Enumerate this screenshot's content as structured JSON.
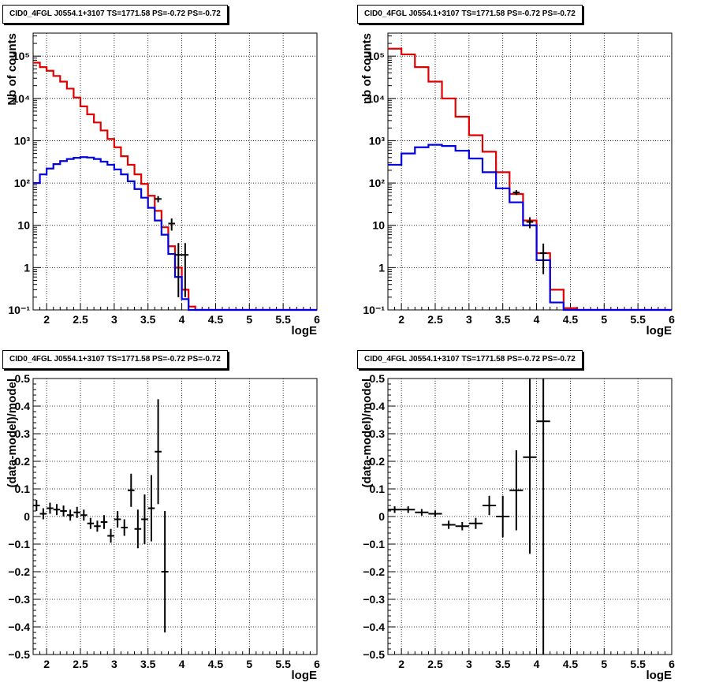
{
  "panel_title": "CID0_4FGL J0554.1+3107 TS=1771.58 PS=-0.72 PS=-0.72",
  "colors": {
    "data": "#000000",
    "model_total": "#e00000",
    "model_source": "#0000e0",
    "grid": "#000000"
  },
  "chart_data": [
    {
      "type": "line",
      "title": "CID0_4FGL J0554.1+3107 TS=1771.58 PS=-0.72 PS=-0.72",
      "xlabel": "logE",
      "ylabel": "Nb of counts",
      "yscale": "log",
      "xlim": [
        1.8,
        6.0
      ],
      "ylim": [
        0.1,
        350000
      ],
      "xticks": [
        "2",
        "2.5",
        "3",
        "3.5",
        "4",
        "4.5",
        "5",
        "5.5",
        "6"
      ],
      "yticks": [
        "10⁻¹",
        "1",
        "10",
        "10²",
        "10³",
        "10⁴",
        "10⁵"
      ],
      "grid": true,
      "bin_width": 0.1,
      "bin_edges_start": 1.8,
      "series": [
        {
          "style": "step",
          "color": "#e00000",
          "values": [
            70000,
            55000,
            45000,
            34000,
            25000,
            17000,
            10500,
            6500,
            4200,
            2700,
            1750,
            1100,
            700,
            430,
            270,
            160,
            95,
            50,
            22,
            9,
            3.2,
            1.0,
            0.3,
            0.12,
            0.1,
            0.1,
            0.1,
            0.1,
            0.1,
            0.1,
            0.1,
            0.1,
            0.1,
            0.1,
            0.1,
            0.1,
            0.1,
            0.1,
            0.1,
            0.1,
            0.1,
            0.1
          ]
        },
        {
          "style": "step",
          "color": "#0000e0",
          "values": [
            100,
            160,
            220,
            280,
            330,
            370,
            395,
            410,
            400,
            370,
            320,
            270,
            210,
            160,
            110,
            72,
            45,
            26,
            13,
            6,
            2.1,
            0.6,
            0.18,
            0.1,
            0.1,
            0.1,
            0.1,
            0.1,
            0.1,
            0.1,
            0.1,
            0.1,
            0.1,
            0.1,
            0.1,
            0.1,
            0.1,
            0.1,
            0.1,
            0.1,
            0.1,
            0.1
          ]
        },
        {
          "style": "errorbar",
          "color": "#000000",
          "points": [
            {
              "x": 3.65,
              "y": 42,
              "yerr": 7
            },
            {
              "x": 3.85,
              "y": 11,
              "yerr": 3.5
            },
            {
              "x": 3.95,
              "y": 2,
              "yerr": 1.8
            },
            {
              "x": 4.05,
              "y": 2,
              "yerr": 1.8
            }
          ]
        }
      ]
    },
    {
      "type": "line",
      "title": "CID0_4FGL J0554.1+3107 TS=1771.58 PS=-0.72 PS=-0.72",
      "xlabel": "logE",
      "ylabel": "nb of counts",
      "yscale": "log",
      "xlim": [
        1.8,
        6.0
      ],
      "ylim": [
        0.1,
        350000
      ],
      "xticks": [
        "2",
        "2.5",
        "3",
        "3.5",
        "4",
        "4.5",
        "5",
        "5.5",
        "6"
      ],
      "yticks": [
        "10⁻¹",
        "1",
        "10",
        "10²",
        "10³",
        "10⁴",
        "10⁵"
      ],
      "grid": true,
      "bin_width": 0.2,
      "bin_edges_start": 1.8,
      "series": [
        {
          "style": "step",
          "color": "#e00000",
          "values": [
            150000,
            110000,
            55000,
            25000,
            10000,
            3700,
            1350,
            550,
            180,
            55,
            13,
            2.2,
            0.3,
            0.11,
            0.1,
            0.1,
            0.1,
            0.1,
            0.1,
            0.1,
            0.1
          ]
        },
        {
          "style": "step",
          "color": "#0000e0",
          "values": [
            270,
            500,
            700,
            800,
            750,
            580,
            380,
            180,
            75,
            35,
            10,
            1.5,
            0.15,
            0.1,
            0.1,
            0.1,
            0.1,
            0.1,
            0.1,
            0.1,
            0.1
          ]
        },
        {
          "style": "errorbar",
          "color": "#000000",
          "points": [
            {
              "x": 3.7,
              "y": 60,
              "yerr": 8
            },
            {
              "x": 3.9,
              "y": 12,
              "yerr": 3.5
            },
            {
              "x": 4.1,
              "y": 2.2,
              "yerr": 1.5
            }
          ]
        }
      ]
    },
    {
      "type": "scatter",
      "title": "CID0_4FGL J0554.1+3107 TS=1771.58 PS=-0.72 PS=-0.72",
      "xlabel": "logE",
      "ylabel": "(data-model)/model",
      "xlim": [
        1.8,
        6.0
      ],
      "ylim": [
        -0.5,
        0.5
      ],
      "xticks": [
        "2",
        "2.5",
        "3",
        "3.5",
        "4",
        "4.5",
        "5",
        "5.5",
        "6"
      ],
      "yticks": [
        "−0.5",
        "−0.4",
        "−0.3",
        "−0.2",
        "−0.1",
        "0",
        "0.1",
        "0.2",
        "0.3",
        "0.4",
        "0.5"
      ],
      "grid": true,
      "series": [
        {
          "style": "errorbar",
          "color": "#000000",
          "xerr": 0.05,
          "points": [
            {
              "x": 1.85,
              "y": 0.04,
              "yerr": 0.02
            },
            {
              "x": 1.95,
              "y": 0.01,
              "yerr": 0.02
            },
            {
              "x": 2.05,
              "y": 0.03,
              "yerr": 0.02
            },
            {
              "x": 2.15,
              "y": 0.025,
              "yerr": 0.02
            },
            {
              "x": 2.25,
              "y": 0.02,
              "yerr": 0.02
            },
            {
              "x": 2.35,
              "y": 0.005,
              "yerr": 0.02
            },
            {
              "x": 2.45,
              "y": 0.015,
              "yerr": 0.02
            },
            {
              "x": 2.55,
              "y": 0.005,
              "yerr": 0.02
            },
            {
              "x": 2.65,
              "y": -0.025,
              "yerr": 0.02
            },
            {
              "x": 2.75,
              "y": -0.035,
              "yerr": 0.02
            },
            {
              "x": 2.85,
              "y": -0.02,
              "yerr": 0.025
            },
            {
              "x": 2.95,
              "y": -0.07,
              "yerr": 0.025
            },
            {
              "x": 3.05,
              "y": -0.01,
              "yerr": 0.03
            },
            {
              "x": 3.15,
              "y": -0.04,
              "yerr": 0.03
            },
            {
              "x": 3.25,
              "y": 0.095,
              "yerr": 0.06
            },
            {
              "x": 3.35,
              "y": -0.045,
              "yerr": 0.07
            },
            {
              "x": 3.45,
              "y": -0.01,
              "yerr": 0.09
            },
            {
              "x": 3.55,
              "y": 0.03,
              "yerr": 0.12
            },
            {
              "x": 3.65,
              "y": 0.235,
              "yerr": 0.19
            },
            {
              "x": 3.75,
              "y": -0.2,
              "yerr": 0.22
            }
          ]
        }
      ]
    },
    {
      "type": "scatter",
      "title": "CID0_4FGL J0554.1+3107 TS=1771.58 PS=-0.72 PS=-0.72",
      "xlabel": "logE",
      "ylabel": "(data-model)/model",
      "xlim": [
        1.8,
        6.0
      ],
      "ylim": [
        -0.5,
        0.5
      ],
      "xticks": [
        "2",
        "2.5",
        "3",
        "3.5",
        "4",
        "4.5",
        "5",
        "5.5",
        "6"
      ],
      "yticks": [
        "−0.5",
        "−0.4",
        "−0.3",
        "−0.2",
        "−0.1",
        "0",
        "0.1",
        "0.2",
        "0.3",
        "0.4",
        "0.5"
      ],
      "grid": true,
      "series": [
        {
          "style": "errorbar",
          "color": "#000000",
          "xerr": 0.1,
          "points": [
            {
              "x": 1.9,
              "y": 0.025,
              "yerr": 0.012
            },
            {
              "x": 2.1,
              "y": 0.025,
              "yerr": 0.012
            },
            {
              "x": 2.3,
              "y": 0.015,
              "yerr": 0.012
            },
            {
              "x": 2.5,
              "y": 0.01,
              "yerr": 0.012
            },
            {
              "x": 2.7,
              "y": -0.03,
              "yerr": 0.015
            },
            {
              "x": 2.9,
              "y": -0.035,
              "yerr": 0.015
            },
            {
              "x": 3.1,
              "y": -0.025,
              "yerr": 0.02
            },
            {
              "x": 3.3,
              "y": 0.04,
              "yerr": 0.035
            },
            {
              "x": 3.5,
              "y": 0.0,
              "yerr": 0.075
            },
            {
              "x": 3.7,
              "y": 0.095,
              "yerr": 0.145
            },
            {
              "x": 3.9,
              "y": 0.215,
              "yerr": 0.35
            },
            {
              "x": 4.1,
              "y": 0.345,
              "yerr": 0.9
            }
          ]
        }
      ]
    }
  ]
}
